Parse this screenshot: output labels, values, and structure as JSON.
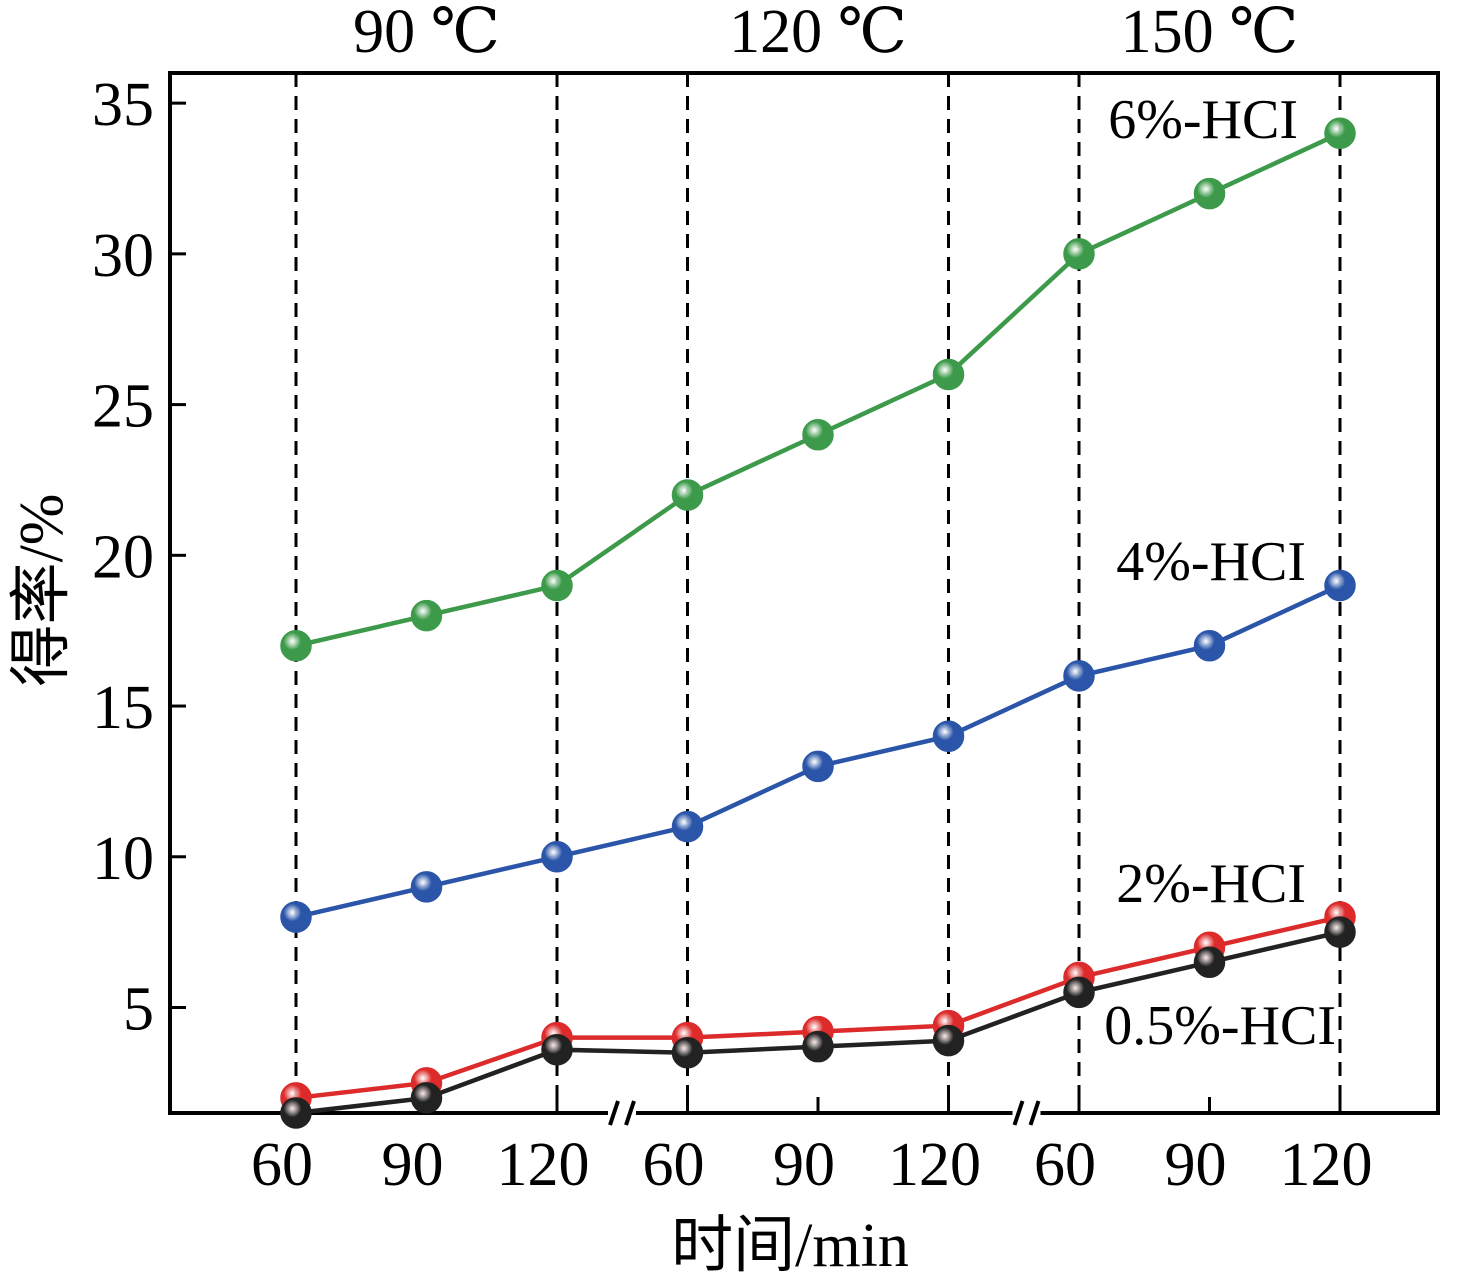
{
  "chart_data": {
    "type": "line",
    "ylabel": "得率/%",
    "xlabel": "时间/min",
    "ylim": [
      1.5,
      36
    ],
    "yticks": [
      5,
      10,
      15,
      20,
      25,
      30,
      35
    ],
    "ytick_labels": [
      "5",
      "10",
      "15",
      "20",
      "25",
      "30",
      "35"
    ],
    "groups": [
      {
        "label": "90 ℃",
        "categories": [
          "60",
          "90",
          "120"
        ]
      },
      {
        "label": "120 ℃",
        "categories": [
          "60",
          "90",
          "120"
        ]
      },
      {
        "label": "150 ℃",
        "categories": [
          "60",
          "90",
          "120"
        ]
      }
    ],
    "axis_break_marks": "//",
    "grid": "vertical dashed lines at 60 and 120 min positions",
    "series": [
      {
        "name": "6%-HCI",
        "color": "#3c9a4a",
        "values": [
          17,
          18,
          19,
          22,
          24,
          26,
          30,
          32,
          34
        ]
      },
      {
        "name": "4%-HCI",
        "color": "#2a55a8",
        "values": [
          8,
          9,
          10,
          11,
          13,
          14,
          16,
          17,
          19
        ]
      },
      {
        "name": "2%-HCI",
        "color": "#dd2a2a",
        "values": [
          2,
          2.5,
          4,
          4,
          4.2,
          4.4,
          6,
          7,
          8
        ]
      },
      {
        "name": "0.5%-HCI",
        "color": "#222222",
        "values": [
          1.5,
          2,
          3.6,
          3.5,
          3.7,
          3.9,
          5.5,
          6.5,
          7.5
        ]
      }
    ]
  }
}
